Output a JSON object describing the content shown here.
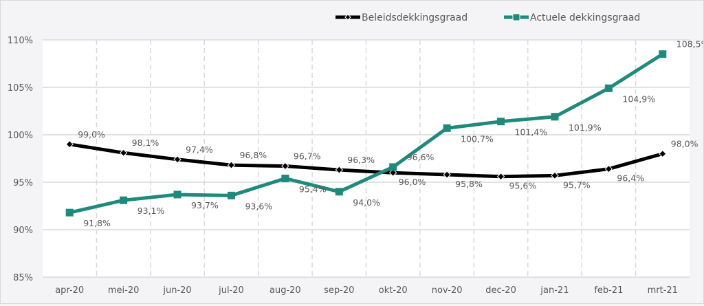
{
  "chart_data": {
    "type": "line",
    "title": "",
    "xlabel": "",
    "ylabel": "",
    "categories": [
      "apr-20",
      "mei-20",
      "jun-20",
      "jul-20",
      "aug-20",
      "sep-20",
      "okt-20",
      "nov-20",
      "dec-20",
      "jan-21",
      "feb-21",
      "mrt-21"
    ],
    "ylim": [
      85,
      110
    ],
    "yticks": [
      85,
      90,
      95,
      100,
      105,
      110
    ],
    "ytick_labels": [
      "85%",
      "90%",
      "95%",
      "100%",
      "105%",
      "110%"
    ],
    "grid": true,
    "legend_position": "top-right",
    "series": [
      {
        "name": "Beleidsdekkingsgraad",
        "color": "#000000",
        "marker": "diamond",
        "values": [
          99.0,
          98.1,
          97.4,
          96.8,
          96.7,
          96.3,
          96.0,
          95.8,
          95.6,
          95.7,
          96.4,
          98.0
        ],
        "labels": [
          "99,0%",
          "98,1%",
          "97,4%",
          "96,8%",
          "96,7%",
          "96,3%",
          "96,0%",
          "95,8%",
          "95,6%",
          "95,7%",
          "96,4%",
          "98,0%"
        ]
      },
      {
        "name": "Actuele dekkingsgraad",
        "color": "#1f8a7b",
        "marker": "square",
        "values": [
          91.8,
          93.1,
          93.7,
          93.6,
          95.4,
          94.0,
          96.6,
          100.7,
          101.4,
          101.9,
          104.9,
          108.5
        ],
        "labels": [
          "91,8%",
          "93,1%",
          "93,7%",
          "93,6%",
          "95,4%",
          "94,0%",
          "96,6%",
          "100,7%",
          "101,4%",
          "101,9%",
          "104,9%",
          "108,5%"
        ]
      }
    ]
  }
}
